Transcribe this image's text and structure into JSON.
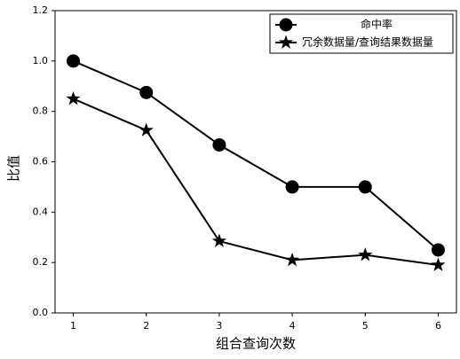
{
  "chart_data": {
    "type": "line",
    "x_label": "组合查询次数",
    "y_label": "比值",
    "x": [
      1,
      2,
      3,
      4,
      5,
      6
    ],
    "series": [
      {
        "name": "命中率",
        "color": "#000000",
        "marker": "circle",
        "values": [
          1.0,
          0.875,
          0.667,
          0.5,
          0.5,
          0.25
        ]
      },
      {
        "name": "冗余数据量/查询结果数据量",
        "color": "#000000",
        "marker": "star",
        "values": [
          0.85,
          0.725,
          0.285,
          0.21,
          0.23,
          0.19
        ]
      }
    ],
    "xlim": [
      0.75,
      6.25
    ],
    "xticks": [
      1,
      2,
      3,
      4,
      5,
      6
    ],
    "ylim": [
      0,
      1.2
    ],
    "yticks": [
      {
        "value": 0,
        "label": "0.0"
      },
      0.2,
      0.4,
      0.6,
      0.8,
      {
        "value": 1,
        "label": "1.0"
      },
      1.2
    ],
    "legend": "upper right",
    "grid": false
  }
}
